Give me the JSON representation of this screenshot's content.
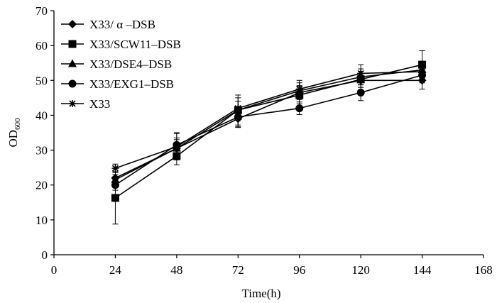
{
  "chart_data": {
    "type": "line",
    "title": "",
    "xlabel": "Time(h)",
    "ylabel": {
      "main": "OD",
      "sub": "600"
    },
    "x": [
      24,
      48,
      72,
      96,
      120,
      144
    ],
    "xlim": [
      0,
      168
    ],
    "xticks": [
      0,
      24,
      48,
      72,
      96,
      120,
      144,
      168
    ],
    "ylim": [
      0,
      70
    ],
    "yticks": [
      0,
      10,
      20,
      30,
      40,
      50,
      60,
      70
    ],
    "grid": false,
    "legend_position": "top-left",
    "series": [
      {
        "name": "X33/ α –DSB",
        "marker": "diamond",
        "values": [
          22,
          30.5,
          39,
          46.5,
          50,
          50
        ],
        "errors": [
          1,
          3,
          2.5,
          2,
          2,
          2.5
        ]
      },
      {
        "name": "X33/SCW11–DSB",
        "marker": "square",
        "values": [
          16.3,
          28.3,
          41.5,
          45.8,
          50.3,
          54.5
        ],
        "errors": [
          7.5,
          2.5,
          4.3,
          2.5,
          2.3,
          4
        ]
      },
      {
        "name": "X33/DSE4–DSB",
        "marker": "triangle",
        "values": [
          21.5,
          30.5,
          41.5,
          47,
          51,
          53
        ],
        "errors": [
          1,
          2.5,
          2.5,
          2.3,
          2.3,
          2.5
        ]
      },
      {
        "name": "X33/EXG1–DSB",
        "marker": "circle",
        "values": [
          20,
          31.5,
          39.5,
          42,
          46.5,
          51.5
        ],
        "errors": [
          1.5,
          3.5,
          2.8,
          1.8,
          2.3,
          2.2
        ]
      },
      {
        "name": "X33",
        "marker": "asterisk",
        "values": [
          24.8,
          31,
          42,
          47.5,
          52,
          52.5
        ],
        "errors": [
          1.2,
          3.8,
          3,
          2.5,
          2.5,
          2.5
        ]
      }
    ]
  }
}
